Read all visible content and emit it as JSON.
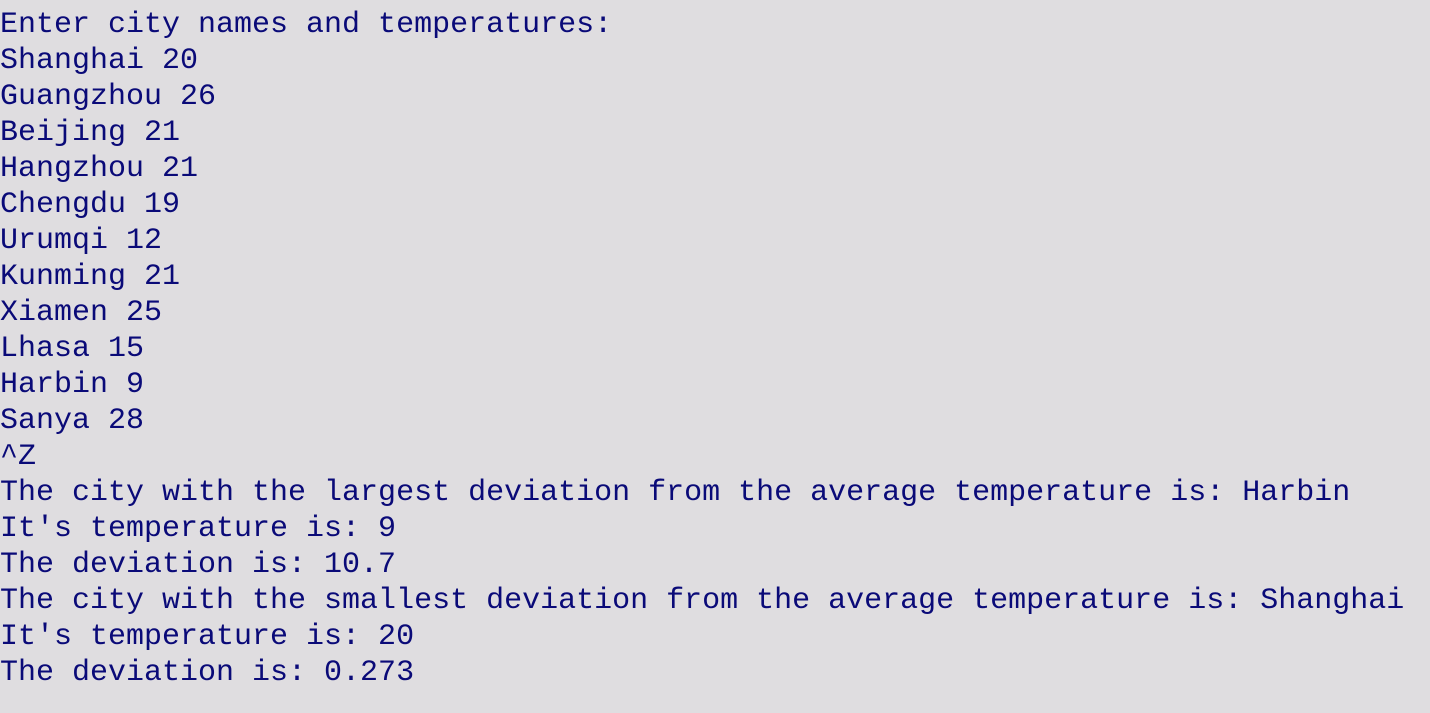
{
  "console": {
    "lines": [
      "Enter city names and temperatures:",
      "Shanghai 20",
      "Guangzhou 26",
      "Beijing 21",
      "Hangzhou 21",
      "Chengdu 19",
      "Urumqi 12",
      "Kunming 21",
      "Xiamen 25",
      "Lhasa 15",
      "Harbin 9",
      "Sanya 28",
      "^Z",
      "The city with the largest deviation from the average temperature is: Harbin",
      "It's temperature is: 9",
      "The deviation is: 10.7",
      "The city with the smallest deviation from the average temperature is: Shanghai",
      "It's temperature is: 20",
      "The deviation is: 0.273"
    ]
  }
}
